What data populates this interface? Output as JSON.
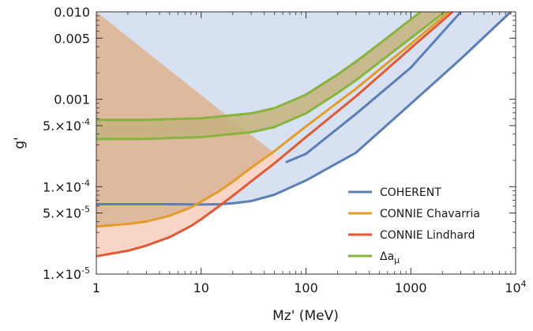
{
  "chart_data": {
    "type": "line",
    "xlabel": "Mz' (MeV)",
    "ylabel": "g'",
    "xscale": "log",
    "yscale": "log",
    "xlim": [
      1,
      10000
    ],
    "ylim": [
      1e-05,
      0.01
    ],
    "x_ticks": [
      {
        "value": 1,
        "label": "1"
      },
      {
        "value": 10,
        "label": "10"
      },
      {
        "value": 100,
        "label": "100"
      },
      {
        "value": 1000,
        "label": "1000"
      },
      {
        "value": 10000,
        "label": "10",
        "exp": "4"
      }
    ],
    "y_ticks": [
      {
        "value": 0.01,
        "label": "0.010"
      },
      {
        "value": 0.005,
        "label": "0.005"
      },
      {
        "value": 0.001,
        "label": "0.001"
      },
      {
        "value": 0.0005,
        "label": "5.×10",
        "exp": "-4"
      },
      {
        "value": 0.0001,
        "label": "1.×10",
        "exp": "-4"
      },
      {
        "value": 5e-05,
        "label": "5.×10",
        "exp": "-5"
      },
      {
        "value": 1e-05,
        "label": "1.×10",
        "exp": "-5"
      }
    ],
    "legend_position": "bottom-right",
    "colors": {
      "coherent": "#5b7fb5",
      "coherent_fill": "#d7e1f1",
      "chavarria": "#e39b2b",
      "lindhard": "#e05a35",
      "lindhard_fill": "#f8d5c7",
      "delta_a_mu": "#86b43c",
      "excluded_fill": "#dfb99e",
      "band_fill": "#c5b27e"
    },
    "series": [
      {
        "name": "COHERENT",
        "key": "coherent",
        "x": [
          1,
          5,
          10,
          15,
          20,
          30,
          50,
          100,
          300,
          1000,
          3000,
          9000
        ],
        "y": [
          6.3e-05,
          6.3e-05,
          6.25e-05,
          6.3e-05,
          6.45e-05,
          6.85e-05,
          8.1e-05,
          0.000118,
          0.000245,
          0.00089,
          0.0029,
          0.01
        ]
      },
      {
        "name": "COHERENT",
        "key": "coherent_inner",
        "x": [
          64,
          100,
          300,
          1000,
          3000
        ],
        "y": [
          0.00019,
          0.000238,
          0.00068,
          0.0023,
          0.01
        ]
      },
      {
        "name": "CONNIE Chavarria",
        "key": "chavarria",
        "x": [
          1,
          2,
          3,
          5,
          8,
          10,
          15,
          20,
          30,
          50,
          100,
          300,
          1000,
          2300
        ],
        "y": [
          3.5e-05,
          3.75e-05,
          4e-05,
          4.65e-05,
          5.8e-05,
          6.75e-05,
          8.95e-05,
          0.000114,
          0.000165,
          0.000255,
          0.00049,
          0.00132,
          0.0043,
          0.01
        ]
      },
      {
        "name": "CONNIE Lindhard",
        "key": "lindhard",
        "x": [
          1,
          2,
          3,
          5,
          8,
          10,
          15,
          20,
          30,
          50,
          100,
          300,
          1000,
          2500
        ],
        "y": [
          1.6e-05,
          1.85e-05,
          2.12e-05,
          2.65e-05,
          3.55e-05,
          4.25e-05,
          6.05e-05,
          7.85e-05,
          0.000115,
          0.000185,
          0.00037,
          0.00108,
          0.00385,
          0.01
        ]
      },
      {
        "name": "Δa_μ",
        "legend_label": "Δa",
        "legend_sub": "μ",
        "key": "delta_upper",
        "x": [
          1,
          3,
          10,
          30,
          50,
          100,
          200,
          300,
          500,
          1000,
          2000
        ],
        "y": [
          0.00058,
          0.00058,
          0.000605,
          0.00069,
          0.00079,
          0.00113,
          0.00192,
          0.0027,
          0.0043,
          0.0082,
          0.0155
        ]
      },
      {
        "name": "Δa_μ",
        "key": "delta_lower",
        "x": [
          1,
          3,
          10,
          30,
          50,
          100,
          200,
          300,
          500,
          1000,
          2000,
          3000
        ],
        "y": [
          0.00035,
          0.000352,
          0.00037,
          0.00042,
          0.00048,
          0.00069,
          0.00118,
          0.00165,
          0.00265,
          0.005,
          0.0095,
          0.014
        ]
      }
    ]
  }
}
